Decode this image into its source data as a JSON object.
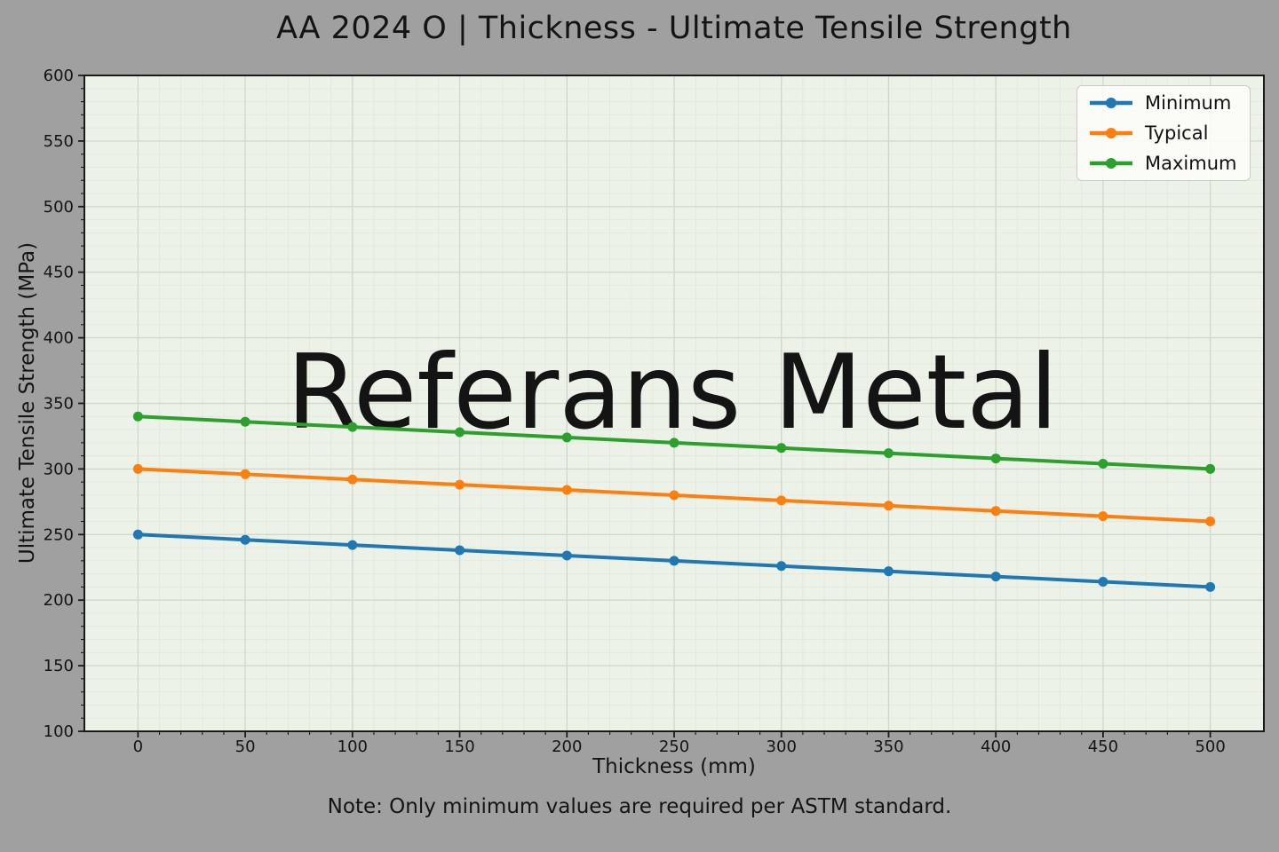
{
  "title": "AA 2024 O | Thickness - Ultimate Tensile Strength",
  "watermark": "Referans Metal",
  "note": "Note: Only minimum values are required per ASTM standard.",
  "colors": {
    "figure_bg": "#a0a0a0",
    "plot_bg": "#edf2e8",
    "grid_major": "#d2d8ca",
    "grid_minor": "#e3e8dd",
    "watermark": "#dde2d6",
    "spine": "#1a1a1a",
    "text": "#141414"
  },
  "chart_data": {
    "type": "line",
    "title": "AA 2024 O | Thickness - Ultimate Tensile Strength",
    "xlabel": "Thickness (mm)",
    "ylabel": "Ultimate Tensile Strength (MPa)",
    "x": [
      0,
      50,
      100,
      150,
      200,
      250,
      300,
      350,
      400,
      450,
      500
    ],
    "series": [
      {
        "name": "Minimum",
        "color": "#1f77b4",
        "values": [
          250,
          246,
          242,
          238,
          234,
          230,
          226,
          222,
          218,
          214,
          210
        ]
      },
      {
        "name": "Typical",
        "color": "#ff7f0e",
        "values": [
          300,
          296,
          292,
          288,
          284,
          280,
          276,
          272,
          268,
          264,
          260
        ]
      },
      {
        "name": "Maximum",
        "color": "#2ca02c",
        "values": [
          340,
          336,
          332,
          328,
          324,
          320,
          316,
          312,
          308,
          304,
          300
        ]
      }
    ],
    "xlim": [
      -25,
      525
    ],
    "ylim": [
      100,
      600
    ],
    "x_ticks": [
      0,
      50,
      100,
      150,
      200,
      250,
      300,
      350,
      400,
      450,
      500
    ],
    "y_ticks": [
      100,
      150,
      200,
      250,
      300,
      350,
      400,
      450,
      500,
      550,
      600
    ],
    "x_minor_step": 10,
    "y_minor_step": 10,
    "grid": true,
    "legend_position": "upper right",
    "note": "Note: Only minimum values are required per ASTM standard."
  }
}
